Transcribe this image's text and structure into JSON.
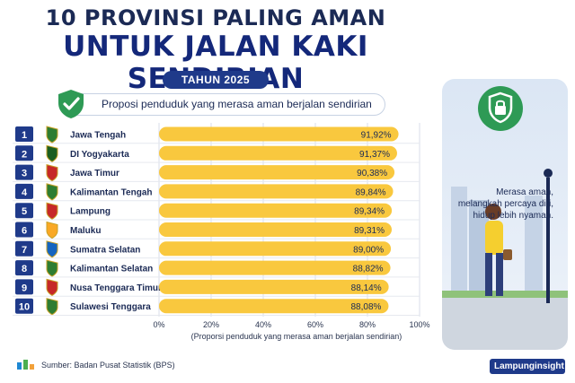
{
  "header": {
    "title_line1": "10 PROVINSI PALING AMAN",
    "title_line2": "UNTUK JALAN KAKI SENDIRIAN",
    "year_badge": "TAHUN 2025",
    "subtitle": "Proposi penduduk yang merasa aman berjalan sendirian"
  },
  "chart_data": {
    "type": "bar",
    "orientation": "horizontal",
    "categories": [
      "Jawa Tengah",
      "DI Yogyakarta",
      "Jawa Timur",
      "Kalimantan Tengah",
      "Lampung",
      "Maluku",
      "Sumatra Selatan",
      "Kalimantan Selatan",
      "Nusa Tenggara Timur",
      "Sulawesi Tenggara"
    ],
    "ranks": [
      "1",
      "2",
      "3",
      "4",
      "5",
      "6",
      "7",
      "8",
      "9",
      "10"
    ],
    "values": [
      91.92,
      91.37,
      90.38,
      89.84,
      89.34,
      89.31,
      89.0,
      88.82,
      88.14,
      88.08
    ],
    "value_labels": [
      "91,92%",
      "91,37%",
      "90,38%",
      "89,84%",
      "89,34%",
      "89,31%",
      "89,00%",
      "88,82%",
      "88,14%",
      "88,08%"
    ],
    "xlim": [
      0,
      100
    ],
    "xticks": [
      "0%",
      "20%",
      "40%",
      "60%",
      "80%",
      "100%"
    ],
    "xlabel": "(Proporsi penduduk yang merasa aman berjalan sendirian)",
    "grid": true,
    "bar_color": "#f9c83e"
  },
  "side_panel": {
    "icon": "lock-shield-icon",
    "quote_lines": [
      "Merasa aman,",
      "melangkah percaya diri,",
      "hidup lebih nyaman."
    ]
  },
  "footer": {
    "source": "Sumber: Badan Pusat Statistik (BPS)",
    "brand": "Lampunginsight"
  },
  "colors": {
    "navy": "#1b2a55",
    "badge_blue": "#1f3a8a",
    "bar_yellow": "#f9c83e",
    "green": "#2e9a55"
  }
}
